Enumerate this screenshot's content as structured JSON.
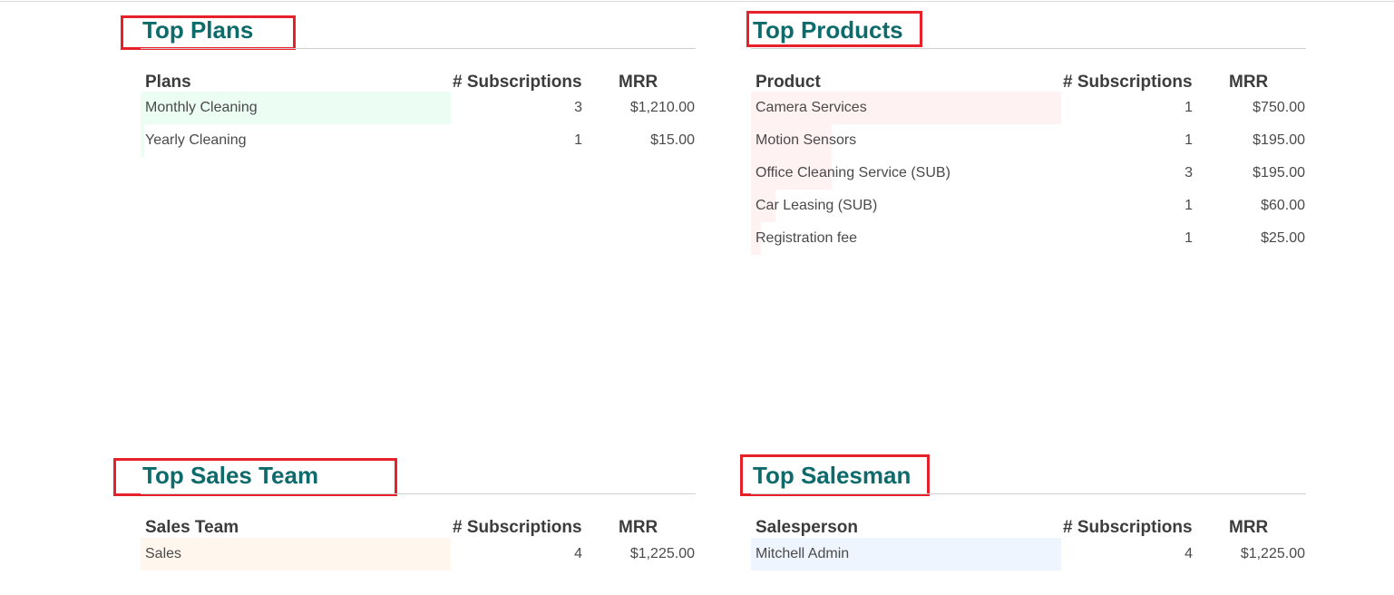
{
  "colors": {
    "title": "#0e6b6b",
    "highlight_box": "#e8202a",
    "plans_bar": "#ecfdf4",
    "products_bar": "#fef2f2",
    "sales_team_bar": "#fff7ee",
    "salesman_bar": "#eef5ff"
  },
  "panels": [
    {
      "title": "Top Plans",
      "headers": {
        "name": "Plans",
        "subs": "# Subscriptions",
        "mrr": "MRR"
      },
      "rows": [
        {
          "name": "Monthly Cleaning",
          "subs": "3",
          "mrr": "$1,210.00",
          "share": 1.0
        },
        {
          "name": "Yearly Cleaning",
          "subs": "1",
          "mrr": "$15.00",
          "share": 0.012
        }
      ]
    },
    {
      "title": "Top Products",
      "headers": {
        "name": "Product",
        "subs": "# Subscriptions",
        "mrr": "MRR"
      },
      "rows": [
        {
          "name": "Camera Services",
          "subs": "1",
          "mrr": "$750.00",
          "share": 1.0
        },
        {
          "name": "Motion Sensors",
          "subs": "1",
          "mrr": "$195.00",
          "share": 0.26
        },
        {
          "name": "Office Cleaning Service (SUB)",
          "subs": "3",
          "mrr": "$195.00",
          "share": 0.26
        },
        {
          "name": "Car Leasing (SUB)",
          "subs": "1",
          "mrr": "$60.00",
          "share": 0.08
        },
        {
          "name": "Registration fee",
          "subs": "1",
          "mrr": "$25.00",
          "share": 0.033
        }
      ]
    },
    {
      "title": "Top Sales Team",
      "headers": {
        "name": "Sales Team",
        "subs": "# Subscriptions",
        "mrr": "MRR"
      },
      "rows": [
        {
          "name": "Sales",
          "subs": "4",
          "mrr": "$1,225.00",
          "share": 1.0
        }
      ]
    },
    {
      "title": "Top Salesman",
      "headers": {
        "name": "Salesperson",
        "subs": "# Subscriptions",
        "mrr": "MRR"
      },
      "rows": [
        {
          "name": "Mitchell Admin",
          "subs": "4",
          "mrr": "$1,225.00",
          "share": 1.0
        }
      ]
    }
  ]
}
